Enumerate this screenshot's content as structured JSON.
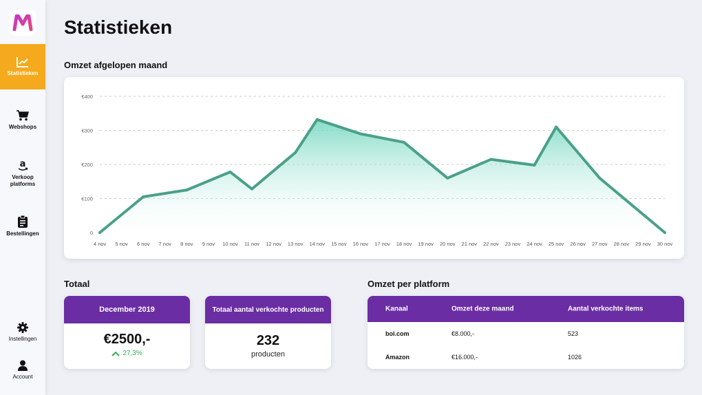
{
  "sidebar": {
    "logo": "M",
    "items": [
      {
        "label": "Statistieken",
        "icon": "chart-line-icon"
      },
      {
        "label": "Webshops",
        "icon": "cart-icon"
      },
      {
        "label_line1": "Verkoop",
        "label_line2": "platforms",
        "icon": "amazon-icon"
      },
      {
        "label": "Bestellingen",
        "icon": "clipboard-icon"
      }
    ],
    "bottom_items": [
      {
        "label": "Instellingen",
        "icon": "gear-icon"
      },
      {
        "label": "Account",
        "icon": "user-icon"
      }
    ]
  },
  "page_title": "Statistieken",
  "chart_section_title": "Omzet afgelopen maand",
  "chart_data": {
    "type": "area",
    "title": "",
    "xlabel": "",
    "ylabel": "",
    "ylim": [
      0,
      400
    ],
    "yticks": [
      0,
      100,
      200,
      300,
      400
    ],
    "ytick_labels": [
      "0",
      "€100",
      "€200",
      "€300",
      "€400"
    ],
    "grid": true,
    "categories": [
      "4 nov",
      "5 nov",
      "6 nov",
      "7 nov",
      "8 nov",
      "9 nov",
      "10 nov",
      "11 nov",
      "12 nov",
      "13 nov",
      "14 nov",
      "15 nov",
      "16 nov",
      "17 nov",
      "18 nov",
      "19 nov",
      "20 nov",
      "21 nov",
      "22 nov",
      "23 nov",
      "24 nov",
      "25 nov",
      "26 nov",
      "27 nov",
      "28 nov",
      "29 nov",
      "30 nov"
    ],
    "point_categories": [
      "4 nov",
      "6 nov",
      "8 nov",
      "10 nov",
      "11 nov",
      "13 nov",
      "14 nov",
      "16 nov",
      "18 nov",
      "20 nov",
      "22 nov",
      "24 nov",
      "25 nov",
      "27 nov",
      "30 nov"
    ],
    "point_values": [
      0,
      105,
      125,
      178,
      128,
      235,
      332,
      290,
      265,
      160,
      215,
      198,
      310,
      160,
      0
    ],
    "line_color": "#4aa088",
    "fill_color_top": "#6fd6bd",
    "fill_color_bottom": "#ffffff"
  },
  "totals": {
    "title": "Totaal",
    "month_card": {
      "header": "December 2019",
      "value": "€2500,-",
      "delta": "27,3%"
    },
    "products_card": {
      "header": "Totaal aantal verkochte producten",
      "value": "232",
      "unit": "producten"
    }
  },
  "platforms": {
    "title": "Omzet per platform",
    "columns": [
      "Kanaal",
      "Omzet deze maand",
      "Aantal verkochte items"
    ],
    "rows": [
      [
        "bol.com",
        "€8.000,-",
        "523"
      ],
      [
        "Amazon",
        "€16.000,-",
        "1026"
      ]
    ]
  },
  "colors": {
    "accent": "#f5a91c",
    "purple": "#6a2da3",
    "positive": "#2fb34a"
  }
}
